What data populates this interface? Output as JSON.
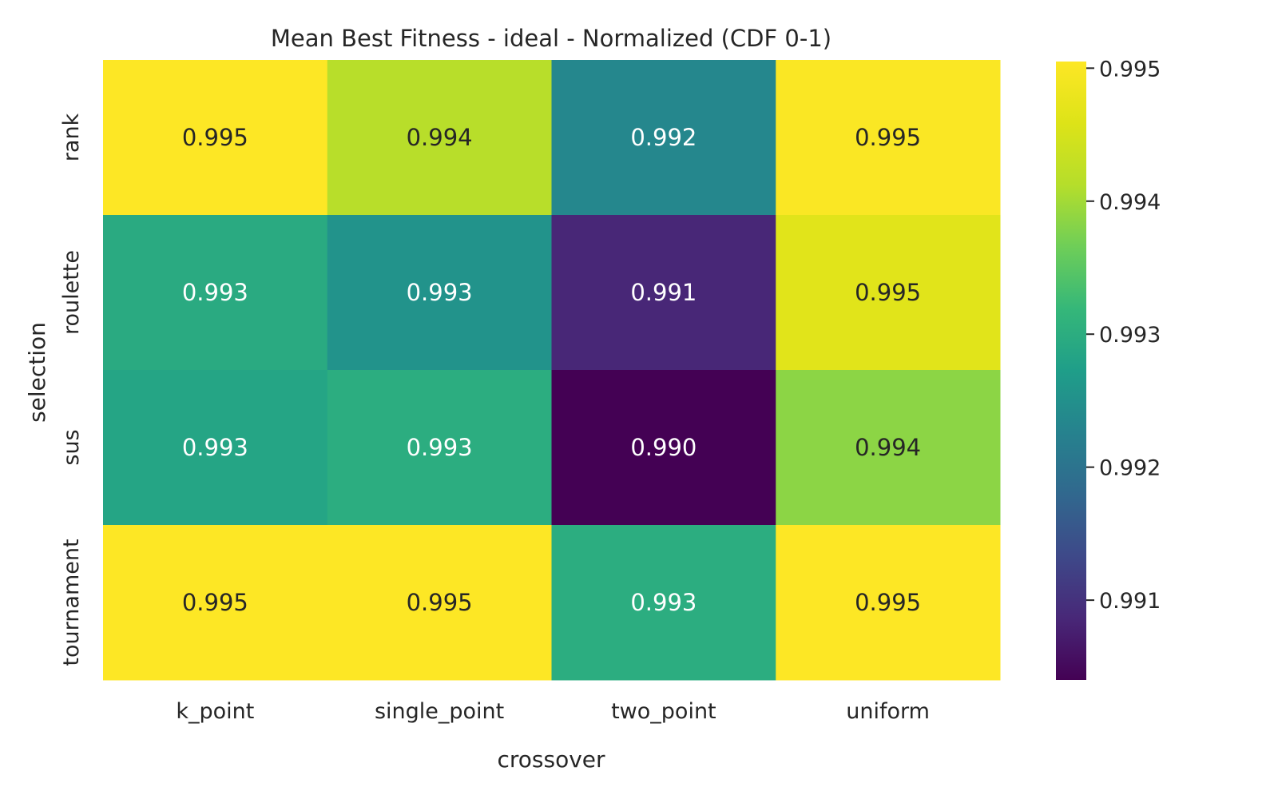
{
  "chart_data": {
    "type": "heatmap",
    "title": "Mean Best Fitness - ideal - Normalized (CDF 0-1)",
    "xlabel": "crossover",
    "ylabel": "selection",
    "x_categories": [
      "k_point",
      "single_point",
      "two_point",
      "uniform"
    ],
    "y_categories": [
      "rank",
      "roulette",
      "sus",
      "tournament"
    ],
    "values": [
      [
        0.99505,
        0.99415,
        0.99235,
        0.995
      ],
      [
        0.99295,
        0.99255,
        0.99085,
        0.99465
      ],
      [
        0.99285,
        0.993,
        0.9904,
        0.99385
      ],
      [
        0.99505,
        0.99505,
        0.993,
        0.99505
      ]
    ],
    "value_labels": [
      [
        "0.995",
        "0.994",
        "0.992",
        "0.995"
      ],
      [
        "0.993",
        "0.993",
        "0.991",
        "0.995"
      ],
      [
        "0.993",
        "0.993",
        "0.990",
        "0.994"
      ],
      [
        "0.995",
        "0.995",
        "0.993",
        "0.995"
      ]
    ],
    "colormap": "viridis",
    "colorbar": {
      "range": [
        0.9904,
        0.99505
      ],
      "ticks": [
        0.991,
        0.992,
        0.993,
        0.994,
        0.995
      ],
      "tick_labels": [
        "0.991",
        "0.992",
        "0.993",
        "0.994",
        "0.995"
      ]
    },
    "grid": false
  }
}
